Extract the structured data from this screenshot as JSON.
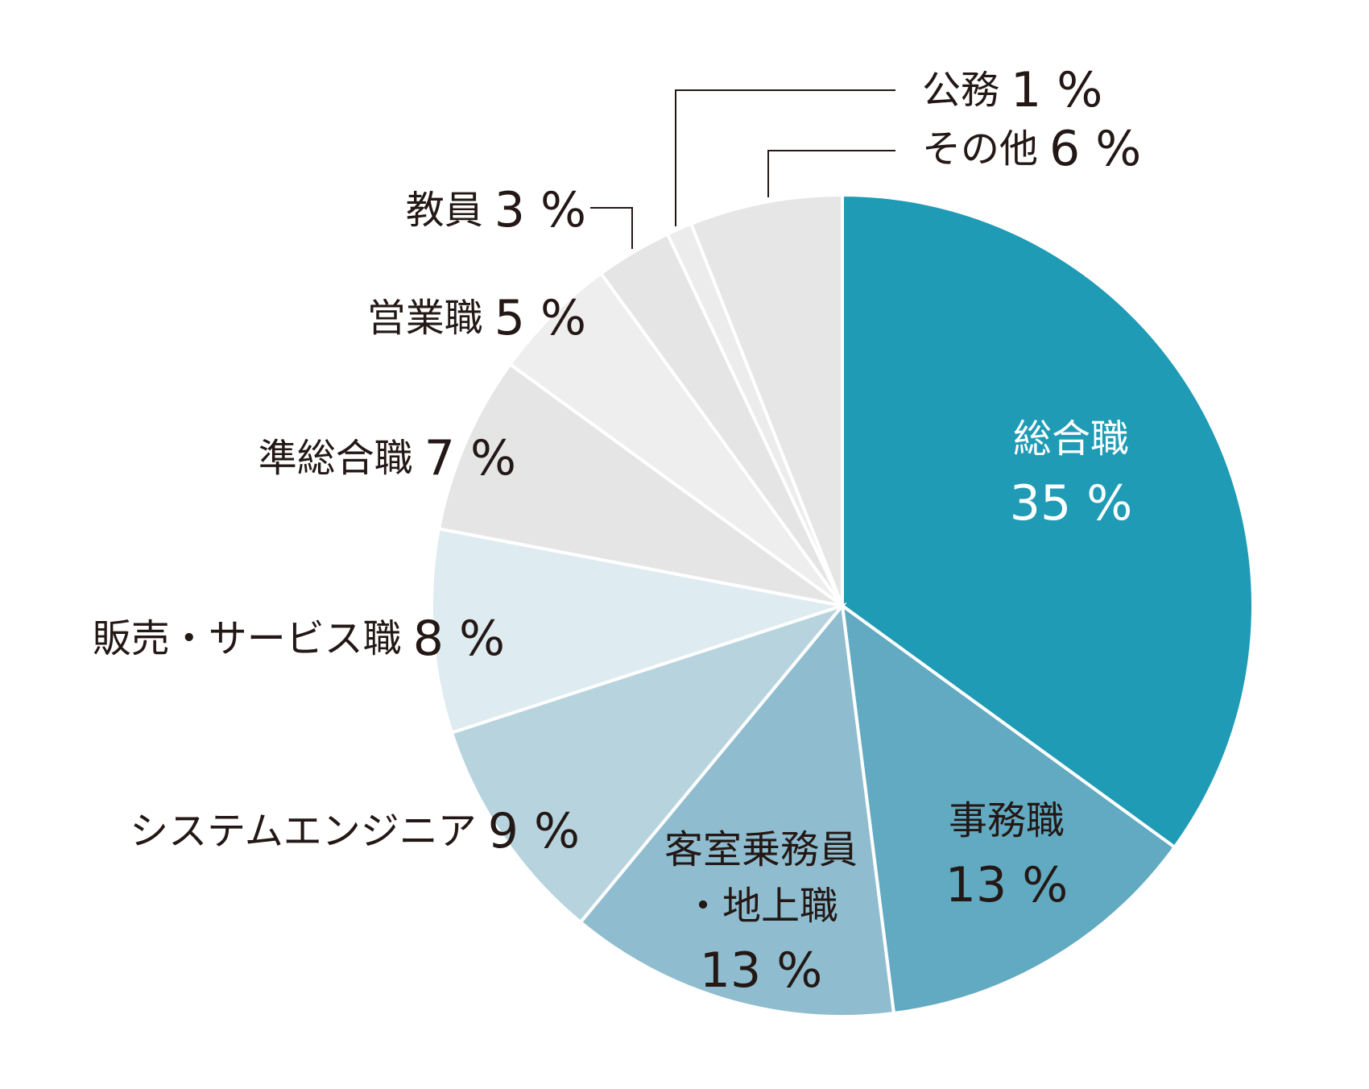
{
  "chart_data": {
    "type": "pie",
    "categories": [
      "総合職",
      "事務職",
      "客室乗務員\n・地上職",
      "システムエンジニア",
      "販売・サービス職",
      "準総合職",
      "営業職",
      "教員",
      "公務",
      "その他"
    ],
    "values": [
      35,
      13,
      13,
      9,
      8,
      7,
      5,
      3,
      1,
      6
    ],
    "value_labels": [
      "35 %",
      "13 %",
      "13 %",
      "9 %",
      "8 %",
      "7 %",
      "5 %",
      "3 %",
      "1 %",
      "6 %"
    ],
    "colors": [
      "#1f9bb5",
      "#62aac1",
      "#8fbdcf",
      "#b7d4de",
      "#deebf0",
      "#e5e5e5",
      "#eeeeee",
      "#e5e5e5",
      "#ececec",
      "#e6e6e6"
    ]
  }
}
